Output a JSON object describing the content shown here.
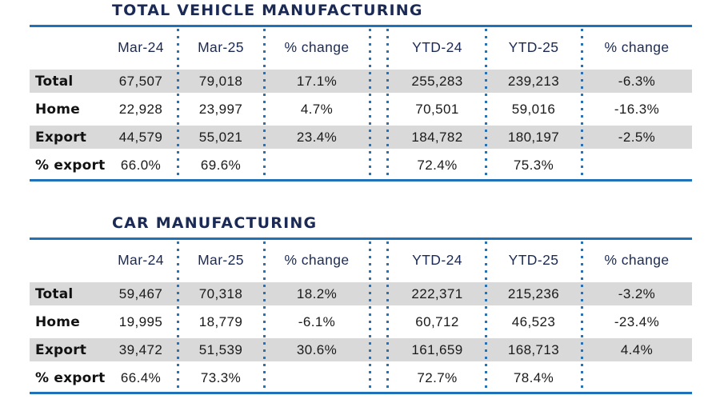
{
  "colors": {
    "navy": "#1b2a55",
    "rule_blue": "#1f72b8",
    "dot_blue": "#2e6fad",
    "row_grey": "#d9d9d9"
  },
  "chart_data": [
    {
      "type": "table",
      "title": "TOTAL VEHICLE MANUFACTURING",
      "columns": [
        "",
        "Mar-24",
        "Mar-25",
        "% change",
        "YTD-24",
        "YTD-25",
        "% change"
      ],
      "rows": [
        [
          "Total",
          "67,507",
          "79,018",
          "17.1%",
          "255,283",
          "239,213",
          "-6.3%"
        ],
        [
          "Home",
          "22,928",
          "23,997",
          "4.7%",
          "70,501",
          "59,016",
          "-16.3%"
        ],
        [
          "Export",
          "44,579",
          "55,021",
          "23.4%",
          "184,782",
          "180,197",
          "-2.5%"
        ],
        [
          "% export",
          "66.0%",
          "69.6%",
          "",
          "72.4%",
          "75.3%",
          ""
        ]
      ],
      "shaded_rows": [
        0,
        2
      ]
    },
    {
      "type": "table",
      "title": "CAR MANUFACTURING",
      "columns": [
        "",
        "Mar-24",
        "Mar-25",
        "% change",
        "YTD-24",
        "YTD-25",
        "% change"
      ],
      "rows": [
        [
          "Total",
          "59,467",
          "70,318",
          "18.2%",
          "222,371",
          "215,236",
          "-3.2%"
        ],
        [
          "Home",
          "19,995",
          "18,779",
          "-6.1%",
          "60,712",
          "46,523",
          "-23.4%"
        ],
        [
          "Export",
          "39,472",
          "51,539",
          "30.6%",
          "161,659",
          "168,713",
          "4.4%"
        ],
        [
          "% export",
          "66.4%",
          "73.3%",
          "",
          "72.7%",
          "78.4%",
          ""
        ]
      ],
      "shaded_rows": [
        0,
        2
      ]
    }
  ]
}
